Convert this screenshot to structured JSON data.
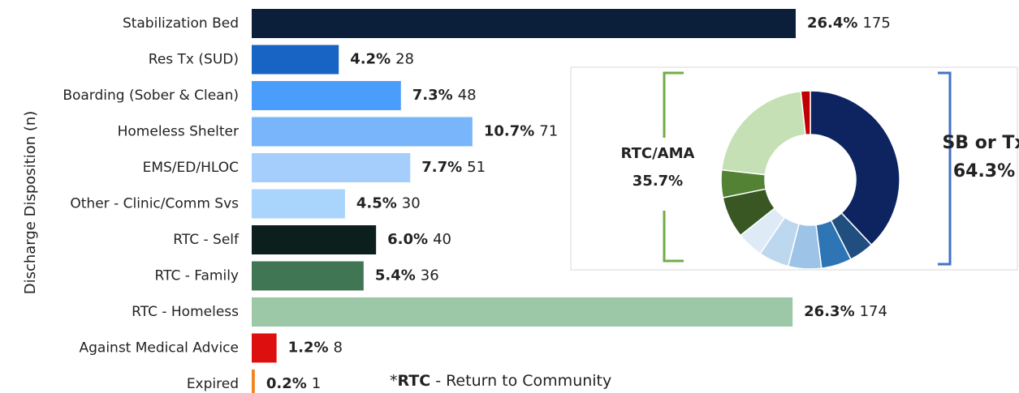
{
  "chart_data": [
    {
      "type": "bar",
      "orientation": "horizontal",
      "y_label": "Discharge Disposition (n)",
      "categories": [
        "Stabilization Bed",
        "Res Tx (SUD)",
        "Boarding (Sober & Clean)",
        "Homeless Shelter",
        "EMS/ED/HLOC",
        "Other - Clinic/Comm Svs",
        "RTC - Self",
        "RTC - Family",
        "RTC - Homeless",
        "Against Medical Advice",
        "Expired"
      ],
      "values": [
        175,
        28,
        48,
        71,
        51,
        30,
        40,
        36,
        174,
        8,
        1
      ],
      "percent_labels": [
        "26.4%",
        "4.2%",
        "7.3%",
        "10.7%",
        "7.7%",
        "4.5%",
        "6.0%",
        "5.4%",
        "26.3%",
        "1.2%",
        "0.2%"
      ],
      "colors": [
        "#0b1f3a",
        "#1864c4",
        "#4a9dfa",
        "#78b5fb",
        "#a6cefd",
        "#a9d4fb",
        "#0c1f1d",
        "#417654",
        "#9dc8a8",
        "#dd0f0f",
        "#f08420"
      ],
      "xlim": [
        0,
        175
      ],
      "footnote": {
        "marker": "*",
        "term": "RTC",
        "definition": "- Return to Community"
      }
    },
    {
      "type": "donut",
      "values": [
        38,
        4.5,
        5.5,
        6,
        5.5,
        4.8,
        7.5,
        5,
        21.5,
        1.7
      ],
      "colors": [
        "#0d2460",
        "#1f4e7f",
        "#2e75b6",
        "#9dc3e6",
        "#bdd7ee",
        "#deebf7",
        "#385723",
        "#548235",
        "#c5e0b4",
        "#c00000"
      ],
      "annotations": [
        {
          "label": "RTC/AMA",
          "value": "35.7%"
        },
        {
          "label": "SB or Tx",
          "value": "64.3%"
        }
      ]
    }
  ]
}
